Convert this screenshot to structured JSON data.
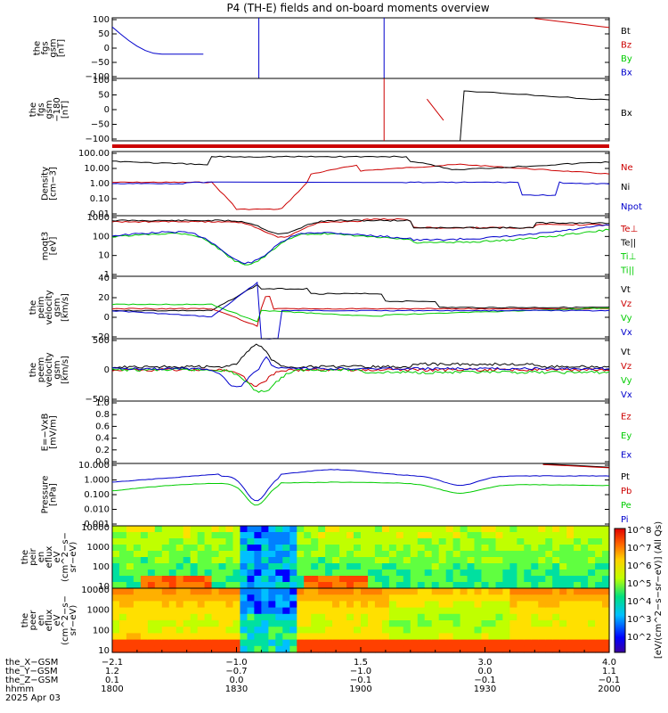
{
  "title": "P4 (TH-E) fields and on-board moments overview",
  "colors": {
    "black": "#000000",
    "red": "#cc0000",
    "green": "#00cc00",
    "blue": "#0000cc"
  },
  "chart_data": [
    {
      "type": "line",
      "id": "p1",
      "ylabel": [
        "the",
        "fgs",
        "gsm",
        "[nT]"
      ],
      "yticks": [
        "100",
        "50",
        "0",
        "−50",
        "−100"
      ],
      "legend": [
        {
          "label": "Bt",
          "color": "#000000"
        },
        {
          "label": "Bz",
          "color": "#cc0000"
        },
        {
          "label": "By",
          "color": "#00cc00"
        },
        {
          "label": "Bx",
          "color": "#0000cc"
        }
      ]
    },
    {
      "type": "line",
      "id": "p2",
      "ylabel": [
        "the",
        "fgs",
        "gsm",
        "−180",
        "[nT]"
      ],
      "yticks": [
        "100",
        "50",
        "0",
        "−50",
        "−100"
      ],
      "legend": [
        {
          "label": "Bx",
          "color": "#000000"
        }
      ]
    },
    {
      "type": "line",
      "id": "p3",
      "yscale": "log",
      "ylabel": [
        "Density",
        "[cm−3]"
      ],
      "yticks": [
        "100.00",
        "10.00",
        "1.00",
        "0.10",
        "0.01"
      ],
      "legend": [
        {
          "label": "Ne",
          "color": "#cc0000"
        },
        {
          "label": "Ni",
          "color": "#000000"
        },
        {
          "label": "Npot",
          "color": "#0000cc"
        }
      ]
    },
    {
      "type": "line",
      "id": "p4",
      "yscale": "log",
      "ylabel": [
        "moqt3",
        "[eV]"
      ],
      "yticks": [
        "1000",
        "100",
        "10",
        "1"
      ],
      "legend": [
        {
          "label": "Te⊥",
          "color": "#cc0000"
        },
        {
          "label": "Te||",
          "color": "#000000"
        },
        {
          "label": "Ti⊥",
          "color": "#00cc00"
        },
        {
          "label": "Ti||",
          "color": "#00cc00"
        }
      ]
    },
    {
      "type": "line",
      "id": "p5",
      "ylabel": [
        "the",
        "peim",
        "velocity",
        "gsm",
        "[km/s]"
      ],
      "yticks": [
        "40",
        "20",
        "0",
        "−20"
      ],
      "legend": [
        {
          "label": "Vt",
          "color": "#000000"
        },
        {
          "label": "Vz",
          "color": "#cc0000"
        },
        {
          "label": "Vy",
          "color": "#00cc00"
        },
        {
          "label": "Vx",
          "color": "#0000cc"
        }
      ]
    },
    {
      "type": "line",
      "id": "p6",
      "ylabel": [
        "the",
        "peem",
        "velocity",
        "gsm",
        "[km/s]"
      ],
      "yticks": [
        "500",
        "0",
        "−500"
      ],
      "legend": [
        {
          "label": "Vt",
          "color": "#000000"
        },
        {
          "label": "Vz",
          "color": "#cc0000"
        },
        {
          "label": "Vy",
          "color": "#00cc00"
        },
        {
          "label": "Vx",
          "color": "#0000cc"
        }
      ]
    },
    {
      "type": "line",
      "id": "p7",
      "ylabel": [
        "E=−VxB",
        "[mV/m]"
      ],
      "yticks": [
        "1.0",
        "0.8",
        "0.6",
        "0.4",
        "0.2",
        "0.0"
      ],
      "legend": [
        {
          "label": "Ez",
          "color": "#cc0000"
        },
        {
          "label": "Ey",
          "color": "#00cc00"
        },
        {
          "label": "Ex",
          "color": "#0000cc"
        }
      ]
    },
    {
      "type": "line",
      "id": "p8",
      "yscale": "log",
      "ylabel": [
        "Pressure",
        "[nPa]"
      ],
      "yticks": [
        "10.000",
        "1.000",
        "0.100",
        "0.010",
        "0.001"
      ],
      "legend": [
        {
          "label": "Pt",
          "color": "#000000"
        },
        {
          "label": "Pb",
          "color": "#cc0000"
        },
        {
          "label": "Pe",
          "color": "#00cc00"
        },
        {
          "label": "Pi",
          "color": "#0000cc"
        }
      ]
    },
    {
      "type": "heatmap",
      "id": "p9",
      "yscale": "log",
      "ylabel": [
        "the",
        "peir",
        "en",
        "eflux",
        "eV",
        "(cm^2−s−",
        "sr−eV)"
      ],
      "yticks": [
        "10000",
        "1000",
        "100",
        "10"
      ]
    },
    {
      "type": "heatmap",
      "id": "p10",
      "yscale": "log",
      "ylabel": [
        "the",
        "peer",
        "en",
        "eflux",
        "eV",
        "(cm^2−s−",
        "sr−eV)"
      ],
      "yticks": [
        "10000",
        "1000",
        "100",
        "10"
      ]
    }
  ],
  "colorbar": {
    "ticks": [
      "10^8",
      "10^7",
      "10^6",
      "10^5",
      "10^4",
      "10^3",
      "10^2"
    ],
    "label": "[eV/(cm^2−s−sr−eV)] (All Qs)"
  },
  "xaxis": {
    "rows": [
      {
        "label": "the_X−GSM",
        "values": [
          "−2.1",
          "−1.0",
          "1.5",
          "3.0",
          "4.0"
        ]
      },
      {
        "label": "the_Y−GSM",
        "values": [
          "1.2",
          "−0.7",
          "−1.0",
          "0.0",
          "1.1"
        ]
      },
      {
        "label": "the_Z−GSM",
        "values": [
          "0.1",
          "0.0",
          "−0.1",
          "−0.1",
          "−0.1"
        ]
      },
      {
        "label": "hhmm",
        "values": [
          "1800",
          "1830",
          "1900",
          "1930",
          "2000"
        ]
      }
    ],
    "date": "2025 Apr 03"
  }
}
